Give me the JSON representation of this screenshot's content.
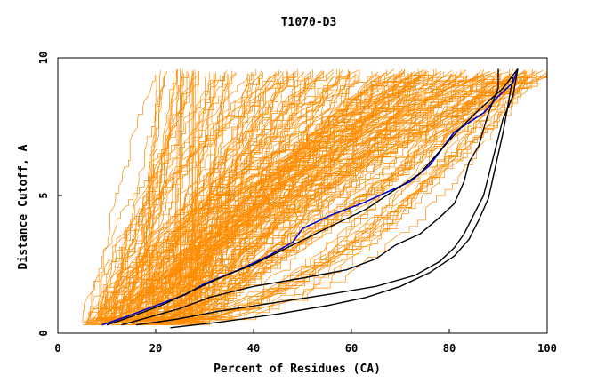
{
  "chart_data": {
    "type": "line",
    "title": "T1070-D3",
    "xlabel": "Percent of Residues (CA)",
    "ylabel": "Distance Cutoff, A",
    "xlim": [
      0,
      100
    ],
    "ylim": [
      0,
      10
    ],
    "xticks": [
      0,
      20,
      40,
      60,
      80,
      100
    ],
    "yticks": [
      0,
      5,
      10
    ],
    "grid": false,
    "legend": "none",
    "colors": {
      "background_models": "#ff8c00",
      "reference_models": "#000000",
      "highlight_model": "#0000cc"
    },
    "series": [
      {
        "color": "#0000cc",
        "style": "highlight",
        "x": [
          9,
          14,
          20,
          26,
          30,
          37,
          43,
          48,
          50,
          56,
          62,
          67,
          72,
          76,
          81,
          87,
          90,
          93,
          94
        ],
        "y": [
          0.3,
          0.6,
          1.0,
          1.4,
          1.8,
          2.3,
          2.8,
          3.3,
          3.8,
          4.3,
          4.7,
          5.1,
          5.5,
          6.1,
          7.3,
          8.0,
          8.6,
          9.1,
          9.6
        ]
      },
      {
        "color": "#000000",
        "style": "reference",
        "x": [
          10,
          15,
          21,
          27,
          33,
          40,
          48,
          56,
          63,
          68,
          74,
          78,
          82,
          86,
          91,
          94
        ],
        "y": [
          0.3,
          0.6,
          1.0,
          1.5,
          2.0,
          2.5,
          3.2,
          3.9,
          4.5,
          5.1,
          5.8,
          6.6,
          7.4,
          8.1,
          8.9,
          9.6
        ]
      },
      {
        "color": "#000000",
        "style": "reference",
        "x": [
          13,
          19,
          25,
          31,
          40,
          50,
          59,
          65,
          69,
          74,
          78,
          81,
          83,
          84,
          86,
          87,
          88,
          90,
          90
        ],
        "y": [
          0.3,
          0.6,
          0.9,
          1.3,
          1.7,
          2.0,
          2.3,
          2.7,
          3.2,
          3.6,
          4.2,
          4.7,
          5.5,
          6.2,
          6.8,
          7.4,
          8.0,
          8.9,
          9.6
        ]
      },
      {
        "color": "#000000",
        "style": "reference",
        "x": [
          16,
          24,
          33,
          44,
          55,
          65,
          73,
          78,
          81,
          83,
          85,
          87,
          88,
          89,
          90,
          91,
          93,
          94
        ],
        "y": [
          0.3,
          0.5,
          0.8,
          1.1,
          1.4,
          1.7,
          2.1,
          2.6,
          3.1,
          3.6,
          4.3,
          5.0,
          5.7,
          6.4,
          7.1,
          7.8,
          8.6,
          9.6
        ]
      },
      {
        "color": "#000000",
        "style": "reference",
        "x": [
          23,
          33,
          45,
          55,
          63,
          70,
          76,
          81,
          84,
          86,
          88,
          89,
          90,
          91,
          92,
          93
        ],
        "y": [
          0.2,
          0.4,
          0.7,
          1.0,
          1.3,
          1.7,
          2.2,
          2.8,
          3.4,
          4.1,
          4.9,
          5.7,
          6.5,
          7.3,
          8.3,
          9.3
        ]
      }
    ]
  }
}
